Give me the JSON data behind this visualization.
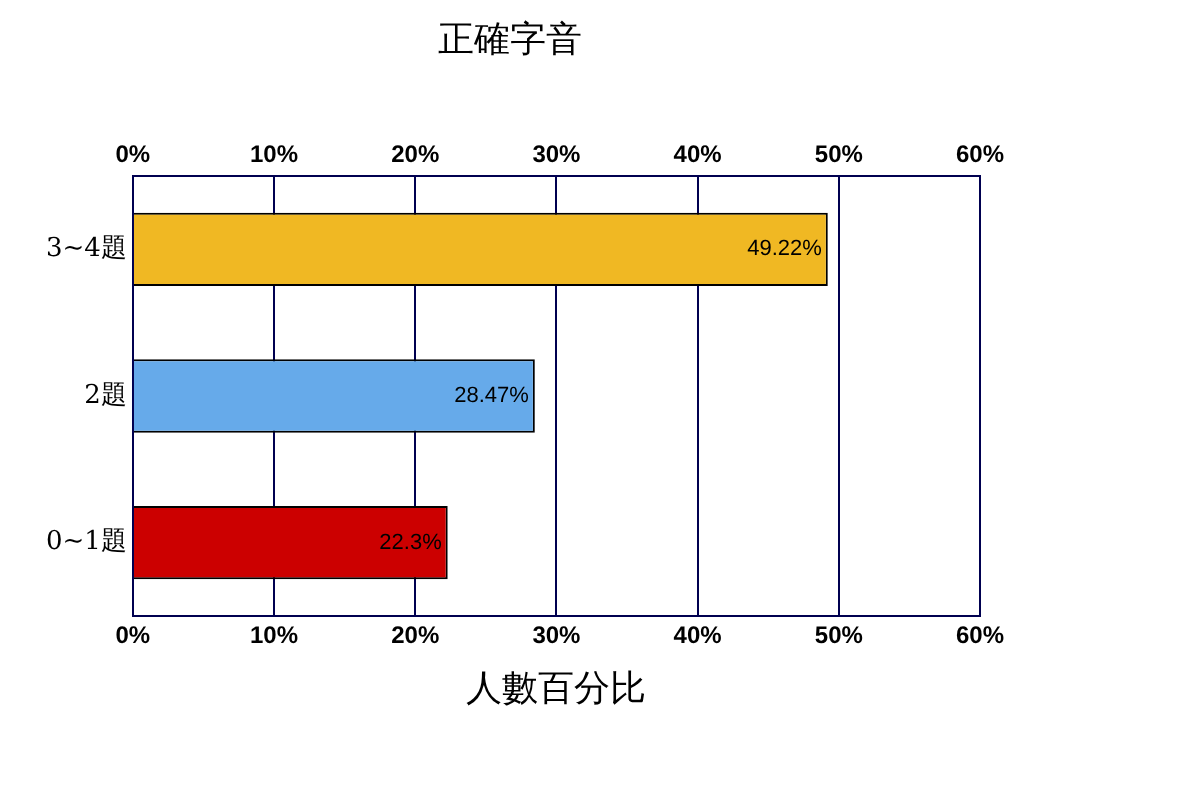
{
  "chart_data": {
    "type": "bar",
    "orientation": "horizontal",
    "title": "正確字音",
    "xlabel": "人數百分比",
    "categories": [
      "3~4題",
      "2題",
      "0~1題"
    ],
    "values": [
      49.22,
      28.47,
      22.3
    ],
    "colors": [
      "#f0b823",
      "#66aaea",
      "#cc0000"
    ],
    "value_labels": [
      "49.22%",
      "28.47%",
      "22.3%"
    ],
    "xlim": [
      0,
      60
    ],
    "xticks": [
      {
        "value": 0,
        "label": "0%"
      },
      {
        "value": 10,
        "label": "10%"
      },
      {
        "value": 20,
        "label": "20%"
      },
      {
        "value": 30,
        "label": "30%"
      },
      {
        "value": 40,
        "label": "40%"
      },
      {
        "value": 50,
        "label": "50%"
      },
      {
        "value": 60,
        "label": "60%"
      }
    ],
    "x2lim": [
      0,
      60
    ],
    "x2ticks": [
      {
        "value": 0,
        "label": "0%"
      },
      {
        "value": 10,
        "label": "10%"
      },
      {
        "value": 20,
        "label": "20%"
      },
      {
        "value": 30,
        "label": "30%"
      },
      {
        "value": 40,
        "label": "40%"
      },
      {
        "value": 50,
        "label": "50%"
      },
      {
        "value": 60,
        "label": "60%"
      }
    ],
    "grid": "x",
    "legend": false
  }
}
